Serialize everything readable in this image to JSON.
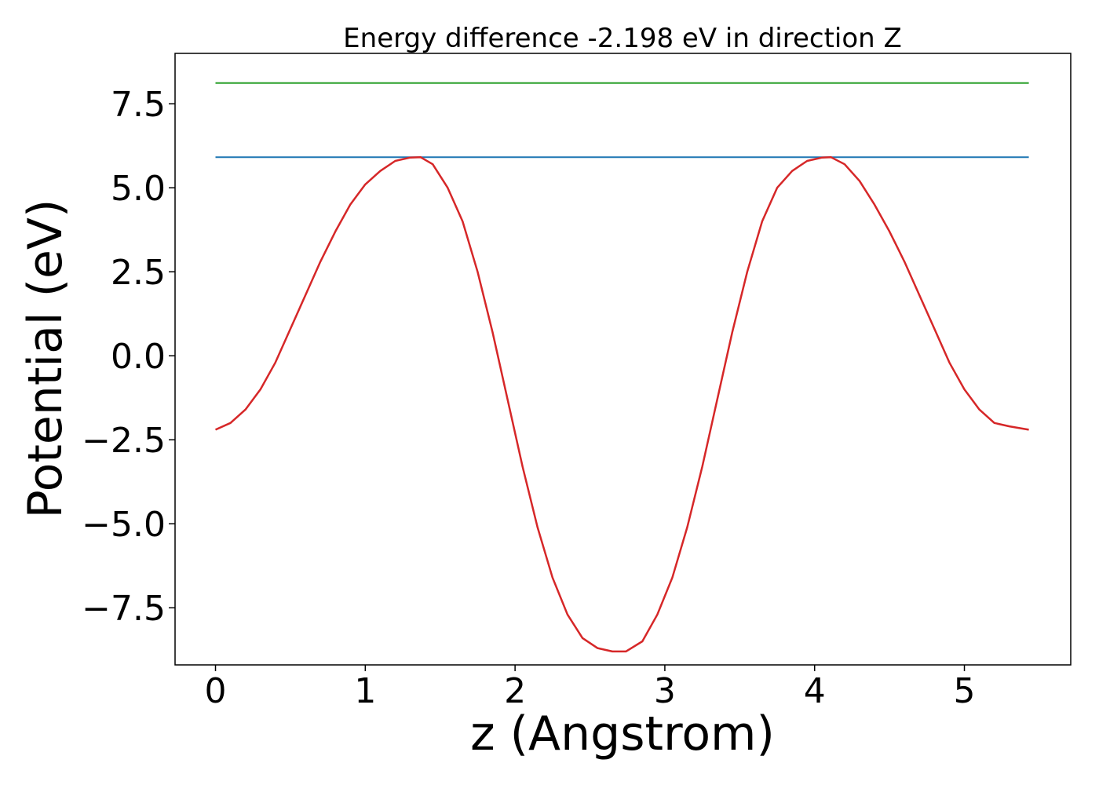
{
  "chart_data": {
    "type": "line",
    "title": "Energy difference -2.198 eV in direction Z",
    "xlabel": "z (Angstrom)",
    "ylabel": "Potential (eV)",
    "xlim": [
      -0.27,
      5.71
    ],
    "ylim": [
      -9.2,
      9.0
    ],
    "xticks": [
      0,
      1,
      2,
      3,
      4,
      5
    ],
    "xtick_labels": [
      "0",
      "1",
      "2",
      "3",
      "4",
      "5"
    ],
    "yticks": [
      7.5,
      5.0,
      2.5,
      0.0,
      -2.5,
      -5.0,
      -7.5
    ],
    "ytick_labels": [
      "7.5",
      "5.0",
      "2.5",
      "0.0",
      "−2.5",
      "−5.0",
      "−7.5"
    ],
    "grid": false,
    "series": [
      {
        "color": "#2ca02c",
        "x": [
          0,
          5.43
        ],
        "y": [
          8.12,
          8.12
        ]
      },
      {
        "color": "#1f77b4",
        "x": [
          0,
          5.43
        ],
        "y": [
          5.91,
          5.91
        ]
      },
      {
        "color": "#d62728",
        "x": [
          0.0,
          0.1,
          0.2,
          0.3,
          0.4,
          0.5,
          0.6,
          0.7,
          0.8,
          0.9,
          1.0,
          1.1,
          1.2,
          1.3,
          1.37,
          1.45,
          1.55,
          1.65,
          1.75,
          1.85,
          1.95,
          2.05,
          2.15,
          2.25,
          2.35,
          2.45,
          2.55,
          2.65,
          2.74,
          2.85,
          2.95,
          3.05,
          3.15,
          3.25,
          3.35,
          3.45,
          3.55,
          3.65,
          3.75,
          3.85,
          3.95,
          4.05,
          4.11,
          4.2,
          4.3,
          4.4,
          4.5,
          4.6,
          4.7,
          4.8,
          4.9,
          5.0,
          5.1,
          5.2,
          5.3,
          5.43
        ],
        "y": [
          -2.2,
          -2.0,
          -1.6,
          -1.0,
          -0.2,
          0.8,
          1.8,
          2.8,
          3.7,
          4.5,
          5.1,
          5.5,
          5.8,
          5.9,
          5.91,
          5.7,
          5.0,
          4.0,
          2.5,
          0.7,
          -1.3,
          -3.3,
          -5.1,
          -6.6,
          -7.7,
          -8.4,
          -8.7,
          -8.8,
          -8.8,
          -8.5,
          -7.7,
          -6.6,
          -5.1,
          -3.3,
          -1.3,
          0.7,
          2.5,
          4.0,
          5.0,
          5.5,
          5.8,
          5.9,
          5.91,
          5.7,
          5.2,
          4.5,
          3.7,
          2.8,
          1.8,
          0.8,
          -0.2,
          -1.0,
          -1.6,
          -2.0,
          -2.1,
          -2.2
        ]
      }
    ]
  }
}
